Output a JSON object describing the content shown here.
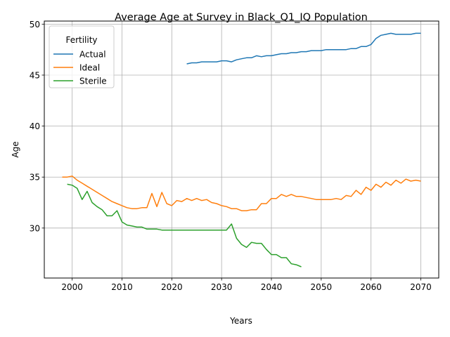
{
  "chart_data": {
    "type": "line",
    "title": "Average Age at Survey in Black_Q1_IQ Population",
    "xlabel": "Years",
    "ylabel": "Age",
    "xlim": [
      1994.4,
      2073.6
    ],
    "ylim": [
      25.1,
      50.3
    ],
    "xticks": [
      2000,
      2010,
      2020,
      2030,
      2040,
      2050,
      2060,
      2070
    ],
    "yticks": [
      30,
      35,
      40,
      45,
      50
    ],
    "grid": true,
    "legend": {
      "title": "Fertility",
      "position": "top-left"
    },
    "colors": {
      "Actual": "#1f77b4",
      "Ideal": "#ff7f0e",
      "Sterile": "#2ca02c"
    },
    "series": [
      {
        "name": "Actual",
        "x": [
          2023,
          2024,
          2025,
          2026,
          2027,
          2028,
          2029,
          2030,
          2031,
          2032,
          2033,
          2034,
          2035,
          2036,
          2037,
          2038,
          2039,
          2040,
          2041,
          2042,
          2043,
          2044,
          2045,
          2046,
          2047,
          2048,
          2049,
          2050,
          2051,
          2052,
          2053,
          2054,
          2055,
          2056,
          2057,
          2058,
          2059,
          2060,
          2061,
          2062,
          2063,
          2064,
          2065,
          2066,
          2067,
          2068,
          2069,
          2070
        ],
        "values": [
          46.1,
          46.2,
          46.2,
          46.3,
          46.3,
          46.3,
          46.3,
          46.4,
          46.4,
          46.3,
          46.5,
          46.6,
          46.7,
          46.7,
          46.9,
          46.8,
          46.9,
          46.9,
          47.0,
          47.1,
          47.1,
          47.2,
          47.2,
          47.3,
          47.3,
          47.4,
          47.4,
          47.4,
          47.5,
          47.5,
          47.5,
          47.5,
          47.5,
          47.6,
          47.6,
          47.8,
          47.8,
          48.0,
          48.6,
          48.9,
          49.0,
          49.1,
          49.0,
          49.0,
          49.0,
          49.0,
          49.1,
          49.1
        ]
      },
      {
        "name": "Ideal",
        "x": [
          1998,
          1999,
          2000,
          2001,
          2002,
          2003,
          2004,
          2005,
          2006,
          2007,
          2008,
          2009,
          2010,
          2011,
          2012,
          2013,
          2014,
          2015,
          2016,
          2017,
          2018,
          2019,
          2020,
          2021,
          2022,
          2023,
          2024,
          2025,
          2026,
          2027,
          2028,
          2029,
          2030,
          2031,
          2032,
          2033,
          2034,
          2035,
          2036,
          2037,
          2038,
          2039,
          2040,
          2041,
          2042,
          2043,
          2044,
          2045,
          2046,
          2047,
          2048,
          2049,
          2050,
          2051,
          2052,
          2053,
          2054,
          2055,
          2056,
          2057,
          2058,
          2059,
          2060,
          2061,
          2062,
          2063,
          2064,
          2065,
          2066,
          2067,
          2068,
          2069,
          2070
        ],
        "values": [
          35.0,
          35.0,
          35.1,
          34.7,
          34.4,
          34.1,
          33.8,
          33.5,
          33.2,
          32.9,
          32.6,
          32.4,
          32.2,
          32.0,
          31.9,
          31.9,
          32.0,
          32.0,
          33.4,
          32.1,
          33.5,
          32.4,
          32.2,
          32.7,
          32.6,
          32.9,
          32.7,
          32.9,
          32.7,
          32.8,
          32.5,
          32.4,
          32.2,
          32.1,
          31.9,
          31.9,
          31.7,
          31.7,
          31.8,
          31.8,
          32.4,
          32.4,
          32.9,
          32.9,
          33.3,
          33.1,
          33.3,
          33.1,
          33.1,
          33.0,
          32.9,
          32.8,
          32.8,
          32.8,
          32.8,
          32.9,
          32.8,
          33.2,
          33.1,
          33.7,
          33.3,
          34.0,
          33.7,
          34.3,
          34.0,
          34.5,
          34.2,
          34.7,
          34.4,
          34.8,
          34.6,
          34.7,
          34.6
        ]
      },
      {
        "name": "Sterile",
        "x": [
          1999,
          2000,
          2001,
          2002,
          2003,
          2004,
          2005,
          2006,
          2007,
          2008,
          2009,
          2010,
          2011,
          2012,
          2013,
          2014,
          2015,
          2016,
          2017,
          2018,
          2019,
          2020,
          2021,
          2022,
          2023,
          2024,
          2025,
          2026,
          2027,
          2028,
          2029,
          2030,
          2031,
          2032,
          2033,
          2034,
          2035,
          2036,
          2037,
          2038,
          2039,
          2040,
          2041,
          2042,
          2043,
          2044,
          2045,
          2046
        ],
        "values": [
          34.3,
          34.2,
          33.9,
          32.8,
          33.6,
          32.5,
          32.1,
          31.8,
          31.2,
          31.2,
          31.7,
          30.6,
          30.3,
          30.2,
          30.1,
          30.1,
          29.9,
          29.9,
          29.9,
          29.8,
          29.8,
          29.8,
          29.8,
          29.8,
          29.8,
          29.8,
          29.8,
          29.8,
          29.8,
          29.8,
          29.8,
          29.8,
          29.8,
          30.4,
          29.0,
          28.4,
          28.1,
          28.6,
          28.5,
          28.5,
          27.9,
          27.4,
          27.4,
          27.1,
          27.1,
          26.5,
          26.4,
          26.2
        ]
      }
    ]
  }
}
